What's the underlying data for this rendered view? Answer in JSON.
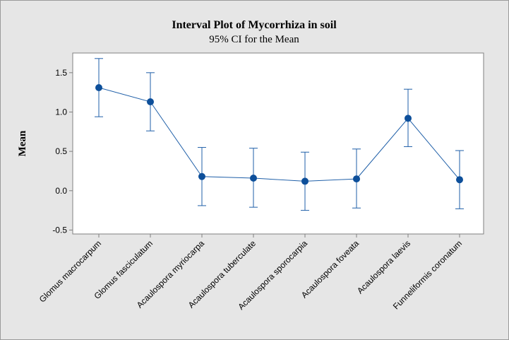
{
  "chart_data": {
    "type": "interval",
    "title": "Interval Plot of Mycorrhiza in soil",
    "subtitle": "95% CI for the Mean",
    "xlabel": "",
    "ylabel": "Mean",
    "ylim": [
      -0.55,
      1.75
    ],
    "yticks": [
      -0.5,
      0.0,
      0.5,
      1.0,
      1.5
    ],
    "ytick_labels": [
      "-0.5",
      "0.0",
      "0.5",
      "1.0",
      "1.5"
    ],
    "categories": [
      "Glomus macrocarpum",
      "Glomus fasciculatum",
      "Acaulospora myriocarpa",
      "Acaulospora tuberculate",
      "Acaulospora sporocarpia",
      "Acaulospora foveata",
      "Acaulospora laevis",
      "Funneliformis coronatum"
    ],
    "means": [
      1.31,
      1.13,
      0.18,
      0.16,
      0.12,
      0.15,
      0.92,
      0.14
    ],
    "lower": [
      0.94,
      0.76,
      -0.19,
      -0.21,
      -0.25,
      -0.22,
      0.56,
      -0.23
    ],
    "upper": [
      1.68,
      1.5,
      0.55,
      0.54,
      0.49,
      0.53,
      1.29,
      0.51
    ],
    "grid": false,
    "colors": {
      "series": "#1f5fa8",
      "marker": "#0d4f9a",
      "background": "#e6e6e6",
      "plot_background": "#ffffff",
      "axis": "#808080"
    }
  }
}
